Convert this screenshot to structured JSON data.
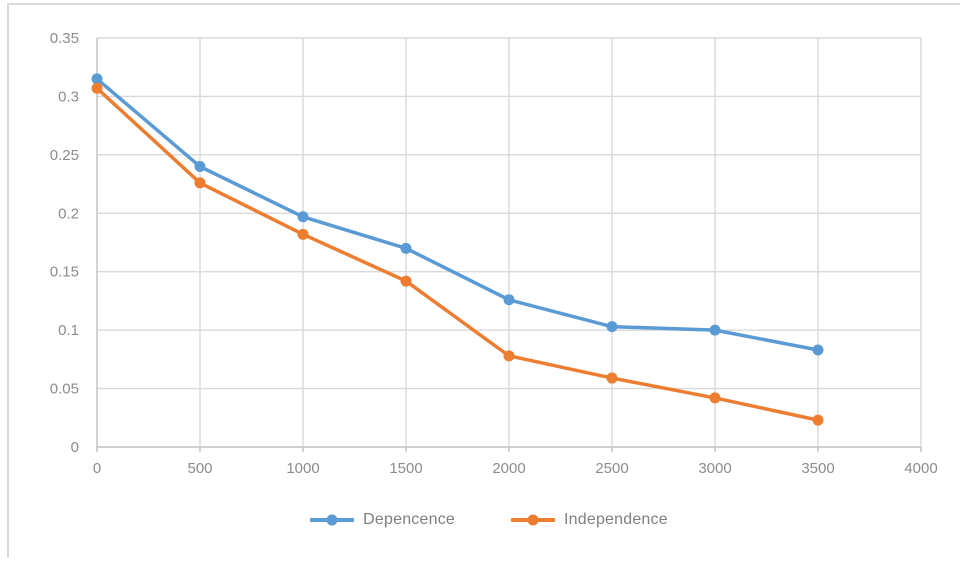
{
  "chart_data": {
    "type": "line",
    "x": [
      0,
      500,
      1000,
      1500,
      2000,
      2500,
      3000,
      3500
    ],
    "series": [
      {
        "name": "Depencence",
        "color": "#5B9BD5",
        "values": [
          0.315,
          0.24,
          0.197,
          0.17,
          0.126,
          0.103,
          0.1,
          0.083
        ]
      },
      {
        "name": "Independence",
        "color": "#ED7D31",
        "values": [
          0.307,
          0.226,
          0.182,
          0.142,
          0.078,
          0.059,
          0.042,
          0.023
        ]
      }
    ],
    "title": "",
    "xlabel": "",
    "ylabel": "",
    "xlim": [
      0,
      4000
    ],
    "ylim": [
      0,
      0.35
    ],
    "x_ticks": [
      0,
      500,
      1000,
      1500,
      2000,
      2500,
      3000,
      3500,
      4000
    ],
    "x_tick_labels": [
      "0",
      "500",
      "1000",
      "1500",
      "2000",
      "2500",
      "3000",
      "3500",
      "4000"
    ],
    "y_ticks": [
      0,
      0.05,
      0.1,
      0.15,
      0.2,
      0.25,
      0.3,
      0.35
    ],
    "y_tick_labels": [
      "0",
      "0.05",
      "0.1",
      "0.15",
      "0.2",
      "0.25",
      "0.3",
      "0.35"
    ],
    "grid": true,
    "legend_position": "bottom-center",
    "marker": "circle"
  },
  "legend": {
    "items": [
      {
        "label": "Depencence"
      },
      {
        "label": "Independence"
      }
    ]
  },
  "colors": {
    "gridline": "#d9d9d9",
    "axis_line": "#bfbfbf",
    "tick_label": "#8c8c8c",
    "legend_text": "#7f7f7f",
    "frame_border": "#d9d9d9",
    "background": "#ffffff",
    "series_1": "#5B9BD5",
    "series_2": "#ED7D31"
  }
}
